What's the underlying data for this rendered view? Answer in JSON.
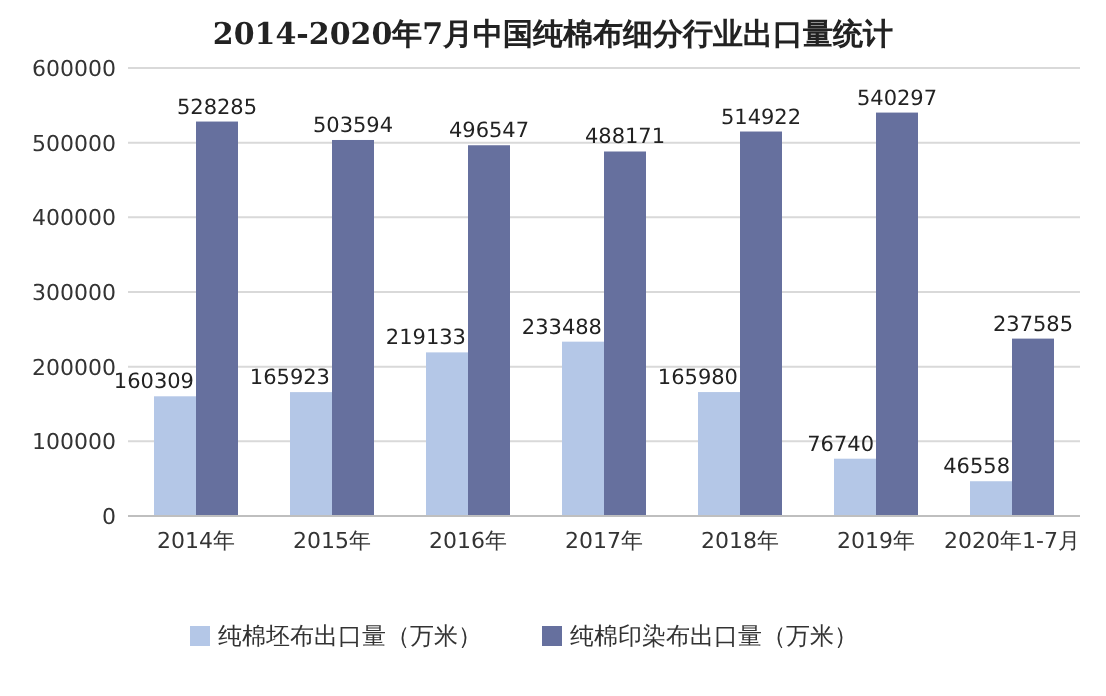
{
  "chart_data": {
    "type": "bar",
    "title": "2014-2020年7月中国纯棉布细分行业出口量统计",
    "categories": [
      "2014年",
      "2015年",
      "2016年",
      "2017年",
      "2018年",
      "2019年",
      "2020年1-7月"
    ],
    "series": [
      {
        "name": "纯棉坯布出口量（万米）",
        "color": "#b4c7e7",
        "values": [
          160309,
          165923,
          219133,
          233488,
          165980,
          76740,
          46558
        ]
      },
      {
        "name": "纯棉印染布出口量（万米）",
        "color": "#66709e",
        "values": [
          528285,
          503594,
          496547,
          488171,
          514922,
          540297,
          237585
        ]
      }
    ],
    "ylim": [
      0,
      600000
    ],
    "yticks": [
      0,
      100000,
      200000,
      300000,
      400000,
      500000,
      600000
    ],
    "grid": "y",
    "legend": "bottom",
    "data_labels": true
  }
}
